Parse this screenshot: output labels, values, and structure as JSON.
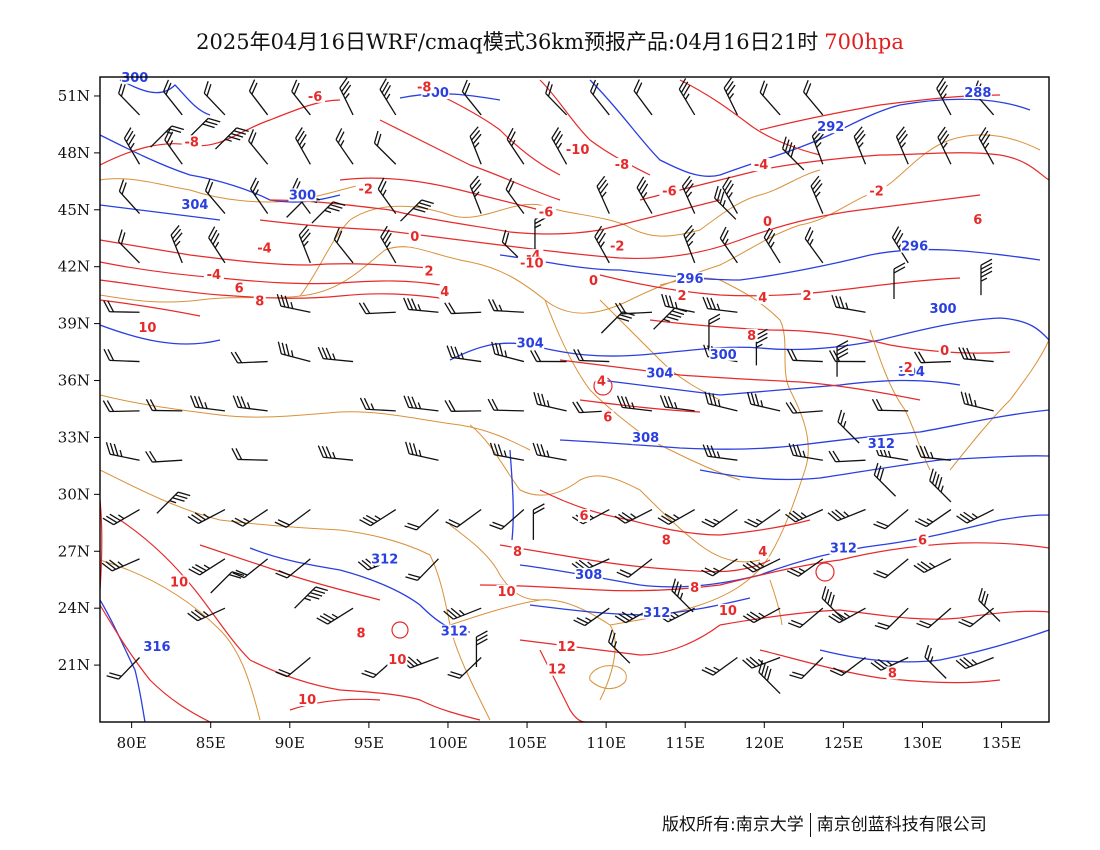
{
  "title": {
    "text": "2025年04月16日WRF/cmaq模式36km预报产品:04月16日21时",
    "level": "700hpa"
  },
  "axes": {
    "lat_labels": [
      "51N",
      "48N",
      "45N",
      "42N",
      "39N",
      "36N",
      "33N",
      "30N",
      "27N",
      "24N",
      "21N"
    ],
    "lat_values": [
      51,
      48,
      45,
      42,
      39,
      36,
      33,
      30,
      27,
      24,
      21
    ],
    "lon_labels": [
      "80E",
      "85E",
      "90E",
      "95E",
      "100E",
      "105E",
      "110E",
      "115E",
      "120E",
      "125E",
      "130E",
      "135E"
    ],
    "lon_values": [
      80,
      85,
      90,
      95,
      100,
      105,
      110,
      115,
      120,
      125,
      130,
      135
    ],
    "lon_range": [
      78,
      138
    ],
    "lat_range": [
      18,
      52
    ]
  },
  "geopotential_labels": [
    {
      "text": "300",
      "lon": 80.2,
      "lat": 51.8
    },
    {
      "text": "300",
      "lon": 99.2,
      "lat": 51.0
    },
    {
      "text": "288",
      "lon": 133.5,
      "lat": 51.0
    },
    {
      "text": "292",
      "lon": 124.2,
      "lat": 49.2
    },
    {
      "text": "304",
      "lon": 84.0,
      "lat": 45.1
    },
    {
      "text": "300",
      "lon": 90.8,
      "lat": 45.6
    },
    {
      "text": "296",
      "lon": 129.5,
      "lat": 42.9
    },
    {
      "text": "296",
      "lon": 115.3,
      "lat": 41.2
    },
    {
      "text": "300",
      "lon": 131.3,
      "lat": 39.6
    },
    {
      "text": "304",
      "lon": 105.2,
      "lat": 37.8
    },
    {
      "text": "300",
      "lon": 117.4,
      "lat": 37.2
    },
    {
      "text": "304",
      "lon": 113.4,
      "lat": 36.2
    },
    {
      "text": "304",
      "lon": 129.3,
      "lat": 36.3
    },
    {
      "text": "308",
      "lon": 112.5,
      "lat": 32.8
    },
    {
      "text": "312",
      "lon": 127.4,
      "lat": 32.5
    },
    {
      "text": "312",
      "lon": 125.0,
      "lat": 27.0
    },
    {
      "text": "312",
      "lon": 96.0,
      "lat": 26.4
    },
    {
      "text": "308",
      "lon": 108.9,
      "lat": 25.6
    },
    {
      "text": "312",
      "lon": 113.2,
      "lat": 23.6
    },
    {
      "text": "312",
      "lon": 100.4,
      "lat": 22.6
    },
    {
      "text": "316",
      "lon": 81.6,
      "lat": 21.8
    }
  ],
  "temperature_labels": [
    {
      "text": "-8",
      "lon": 98.5,
      "lat": 51.3
    },
    {
      "text": "-6",
      "lon": 91.6,
      "lat": 50.8
    },
    {
      "text": "-8",
      "lon": 83.8,
      "lat": 48.4
    },
    {
      "text": "-10",
      "lon": 108.2,
      "lat": 48.0
    },
    {
      "text": "-8",
      "lon": 111.0,
      "lat": 47.2
    },
    {
      "text": "-4",
      "lon": 119.8,
      "lat": 47.2
    },
    {
      "text": "-2",
      "lon": 94.8,
      "lat": 45.9
    },
    {
      "text": "-2",
      "lon": 127.1,
      "lat": 45.8
    },
    {
      "text": "-6",
      "lon": 114.0,
      "lat": 45.8
    },
    {
      "text": "-6",
      "lon": 106.2,
      "lat": 44.7
    },
    {
      "text": "0",
      "lon": 120.2,
      "lat": 44.2
    },
    {
      "text": "6",
      "lon": 133.5,
      "lat": 44.3
    },
    {
      "text": "-4",
      "lon": 88.4,
      "lat": 42.8
    },
    {
      "text": "0",
      "lon": 97.9,
      "lat": 43.4
    },
    {
      "text": "-2",
      "lon": 110.7,
      "lat": 42.9
    },
    {
      "text": "-4",
      "lon": 105.4,
      "lat": 42.4
    },
    {
      "text": "-10",
      "lon": 105.3,
      "lat": 42.0
    },
    {
      "text": "2",
      "lon": 98.8,
      "lat": 41.6
    },
    {
      "text": "-4",
      "lon": 85.2,
      "lat": 41.4
    },
    {
      "text": "0",
      "lon": 109.2,
      "lat": 41.1
    },
    {
      "text": "6",
      "lon": 86.8,
      "lat": 40.7
    },
    {
      "text": "4",
      "lon": 99.8,
      "lat": 40.5
    },
    {
      "text": "2",
      "lon": 114.8,
      "lat": 40.3
    },
    {
      "text": "4",
      "lon": 119.9,
      "lat": 40.2
    },
    {
      "text": "2",
      "lon": 122.7,
      "lat": 40.3
    },
    {
      "text": "8",
      "lon": 88.1,
      "lat": 40.0
    },
    {
      "text": "10",
      "lon": 81.0,
      "lat": 38.6
    },
    {
      "text": "8",
      "lon": 119.2,
      "lat": 38.2
    },
    {
      "text": "0",
      "lon": 131.4,
      "lat": 37.4
    },
    {
      "text": "2",
      "lon": 129.1,
      "lat": 36.5
    },
    {
      "text": "4",
      "lon": 109.7,
      "lat": 35.8
    },
    {
      "text": "6",
      "lon": 110.1,
      "lat": 33.9
    },
    {
      "text": "6",
      "lon": 108.6,
      "lat": 28.7
    },
    {
      "text": "8",
      "lon": 113.8,
      "lat": 27.4
    },
    {
      "text": "8",
      "lon": 104.4,
      "lat": 26.8
    },
    {
      "text": "4",
      "lon": 119.9,
      "lat": 26.8
    },
    {
      "text": "6",
      "lon": 130.0,
      "lat": 27.4
    },
    {
      "text": "10",
      "lon": 83.0,
      "lat": 25.2
    },
    {
      "text": "10",
      "lon": 103.7,
      "lat": 24.7
    },
    {
      "text": "8",
      "lon": 115.6,
      "lat": 24.9
    },
    {
      "text": "10",
      "lon": 117.7,
      "lat": 23.7
    },
    {
      "text": "8",
      "lon": 94.5,
      "lat": 22.5
    },
    {
      "text": "12",
      "lon": 107.5,
      "lat": 21.8
    },
    {
      "text": "10",
      "lon": 96.8,
      "lat": 21.1
    },
    {
      "text": "12",
      "lon": 106.9,
      "lat": 20.6
    },
    {
      "text": "8",
      "lon": 128.1,
      "lat": 20.4
    },
    {
      "text": "10",
      "lon": 91.1,
      "lat": 19.0
    }
  ],
  "wind_barb_samples": [
    {
      "lon": 81.2,
      "lat": 48.3,
      "dir": "NW"
    },
    {
      "lon": 83.5,
      "lat": 48.7,
      "dir": "NW"
    },
    {
      "lon": 85.3,
      "lat": 48.2,
      "dir": "NW"
    },
    {
      "lon": 89.8,
      "lat": 44.6,
      "dir": "NW"
    },
    {
      "lon": 91.4,
      "lat": 44.3,
      "dir": "NW"
    },
    {
      "lon": 97.0,
      "lat": 44.4,
      "dir": "NW"
    },
    {
      "lon": 105.5,
      "lat": 42.9,
      "dir": "W"
    },
    {
      "lon": 109.7,
      "lat": 38.5,
      "dir": "NW"
    },
    {
      "lon": 113.0,
      "lat": 38.7,
      "dir": "NW"
    },
    {
      "lon": 116.5,
      "lat": 37.6,
      "dir": "W"
    },
    {
      "lon": 119.5,
      "lat": 36.8,
      "dir": "W"
    },
    {
      "lon": 124.6,
      "lat": 36.2,
      "dir": "W"
    },
    {
      "lon": 126.0,
      "lat": 32.7,
      "dir": "SW"
    },
    {
      "lon": 128.3,
      "lat": 29.9,
      "dir": "SW"
    },
    {
      "lon": 131.8,
      "lat": 29.6,
      "dir": "SW"
    },
    {
      "lon": 105.4,
      "lat": 27.6,
      "dir": "W"
    },
    {
      "lon": 115.5,
      "lat": 23.8,
      "dir": "SW"
    },
    {
      "lon": 125.0,
      "lat": 23.4,
      "dir": "SW"
    },
    {
      "lon": 111.5,
      "lat": 21.1,
      "dir": "SW"
    },
    {
      "lon": 101.8,
      "lat": 20.9,
      "dir": "W"
    },
    {
      "lon": 90.3,
      "lat": 24.0,
      "dir": "NW"
    },
    {
      "lon": 85.0,
      "lat": 24.8,
      "dir": "NW"
    },
    {
      "lon": 81.6,
      "lat": 29.0,
      "dir": "NW"
    },
    {
      "lon": 121.0,
      "lat": 19.5,
      "dir": "SW"
    },
    {
      "lon": 131.5,
      "lat": 20.3,
      "dir": "SW"
    },
    {
      "lon": 134.9,
      "lat": 23.3,
      "dir": "SW"
    },
    {
      "lon": 133.7,
      "lat": 40.5,
      "dir": "W"
    },
    {
      "lon": 128.2,
      "lat": 40.3,
      "dir": "W"
    },
    {
      "lon": 118.2,
      "lat": 44.5,
      "dir": "SW"
    },
    {
      "lon": 122.5,
      "lat": 47.1,
      "dir": "SW"
    }
  ],
  "colors": {
    "geopotential": "#2a3fe0",
    "temperature": "#e62a2a",
    "border": "#d9913a",
    "barb": "#111111",
    "frame": "#000000"
  },
  "footer": {
    "left": "版权所有:南京大学",
    "right": "南京创蓝科技有限公司"
  }
}
